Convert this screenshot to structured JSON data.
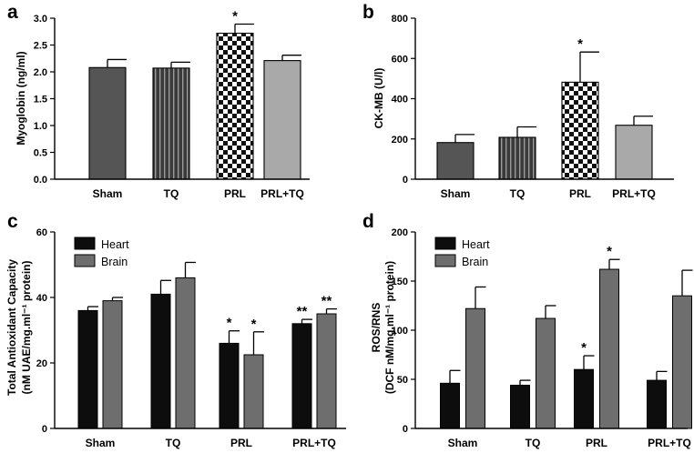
{
  "chart_data": [
    {
      "panel": "a",
      "type": "bar",
      "categories": [
        "Sham",
        "TQ",
        "PRL",
        "PRL+TQ"
      ],
      "values": [
        2.08,
        2.07,
        2.72,
        2.21
      ],
      "errors": [
        0.15,
        0.11,
        0.17,
        0.1
      ],
      "bar_styles": [
        "solid-dark",
        "vertical-stripes",
        "checker",
        "solid-light"
      ],
      "annotations": [
        "",
        "",
        "*",
        ""
      ],
      "ylabel": "Myoglobin (ng/ml)",
      "ylim": [
        0,
        3.0
      ],
      "yticks": [
        0,
        0.5,
        1.0,
        1.5,
        2.0,
        2.5,
        3.0
      ],
      "ytick_labels": [
        "0.0",
        "0.5",
        "1.0",
        "1.5",
        "2.0",
        "2.5",
        "3.0"
      ]
    },
    {
      "panel": "b",
      "type": "bar",
      "categories": [
        "Sham",
        "TQ",
        "PRL",
        "PRL+TQ"
      ],
      "values": [
        182,
        208,
        482,
        268
      ],
      "errors": [
        40,
        52,
        150,
        45
      ],
      "bar_styles": [
        "solid-dark",
        "vertical-stripes",
        "checker",
        "solid-light"
      ],
      "annotations": [
        "",
        "",
        "*",
        ""
      ],
      "ylabel": "CK-MB (U/l)",
      "ylim": [
        0,
        800
      ],
      "yticks": [
        0,
        200,
        400,
        600,
        800
      ],
      "ytick_labels": [
        "0",
        "200",
        "400",
        "600",
        "800"
      ]
    },
    {
      "panel": "c",
      "type": "bar",
      "categories": [
        "Sham",
        "TQ",
        "PRL",
        "PRL+TQ"
      ],
      "series": [
        {
          "name": "Heart",
          "color": "#0d0d0d",
          "values": [
            36,
            41,
            26,
            32
          ],
          "errors": [
            1.2,
            4.2,
            3.8,
            1.3
          ],
          "annotations": [
            "",
            "",
            "*",
            "**"
          ]
        },
        {
          "name": "Brain",
          "color": "#6e6e6e",
          "values": [
            39,
            46,
            22.5,
            35
          ],
          "errors": [
            1.0,
            4.7,
            7.0,
            1.5
          ],
          "annotations": [
            "",
            "",
            "*",
            "**"
          ]
        }
      ],
      "ylabel_lines": [
        "Total Antioxidant Capacity",
        "(nM UAE/mg.ml⁻¹ protein)"
      ],
      "ylim": [
        0,
        60
      ],
      "yticks": [
        0,
        20,
        40,
        60
      ],
      "ytick_labels": [
        "0",
        "20",
        "40",
        "60"
      ],
      "legend": "top-left"
    },
    {
      "panel": "d",
      "type": "bar",
      "categories": [
        "Sham",
        "TQ",
        "PRL",
        "PRL+TQ"
      ],
      "series": [
        {
          "name": "Heart",
          "color": "#0d0d0d",
          "values": [
            46,
            44,
            60,
            49
          ],
          "errors": [
            13,
            5,
            14,
            9
          ],
          "annotations": [
            "",
            "",
            "*",
            ""
          ]
        },
        {
          "name": "Brain",
          "color": "#6e6e6e",
          "values": [
            122,
            112,
            162,
            135
          ],
          "errors": [
            22,
            13,
            10,
            26
          ],
          "annotations": [
            "",
            "",
            "*",
            ""
          ]
        }
      ],
      "ylabel_lines": [
        "ROS/RNS",
        "(DCF nM/mg.ml⁻¹ protein)"
      ],
      "ylim": [
        0,
        200
      ],
      "yticks": [
        0,
        50,
        100,
        150,
        200
      ],
      "ytick_labels": [
        "0",
        "50",
        "100",
        "150",
        "200"
      ],
      "legend": "top-left"
    }
  ]
}
